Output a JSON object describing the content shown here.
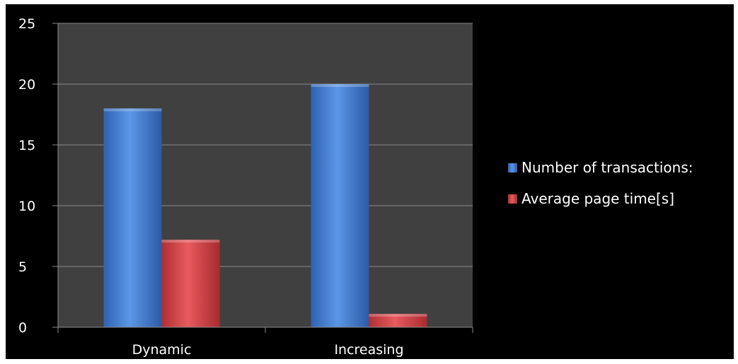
{
  "chart_data": {
    "type": "bar",
    "categories": [
      "Dynamic",
      "Increasing"
    ],
    "series": [
      {
        "name": "Number of transactions:",
        "values": [
          18,
          20
        ],
        "color": "#4a86d8"
      },
      {
        "name": "Average page time[s]",
        "values": [
          7.2,
          1.1
        ],
        "color": "#d9474a"
      }
    ],
    "ylim": [
      0,
      25
    ],
    "yticks": [
      0,
      5,
      10,
      15,
      20,
      25
    ],
    "grid": true,
    "legend": "right",
    "colors": {
      "background": "#000000",
      "plot_area": "#404040",
      "gridline": "#8a8a8a",
      "text": "#ffffff"
    }
  }
}
